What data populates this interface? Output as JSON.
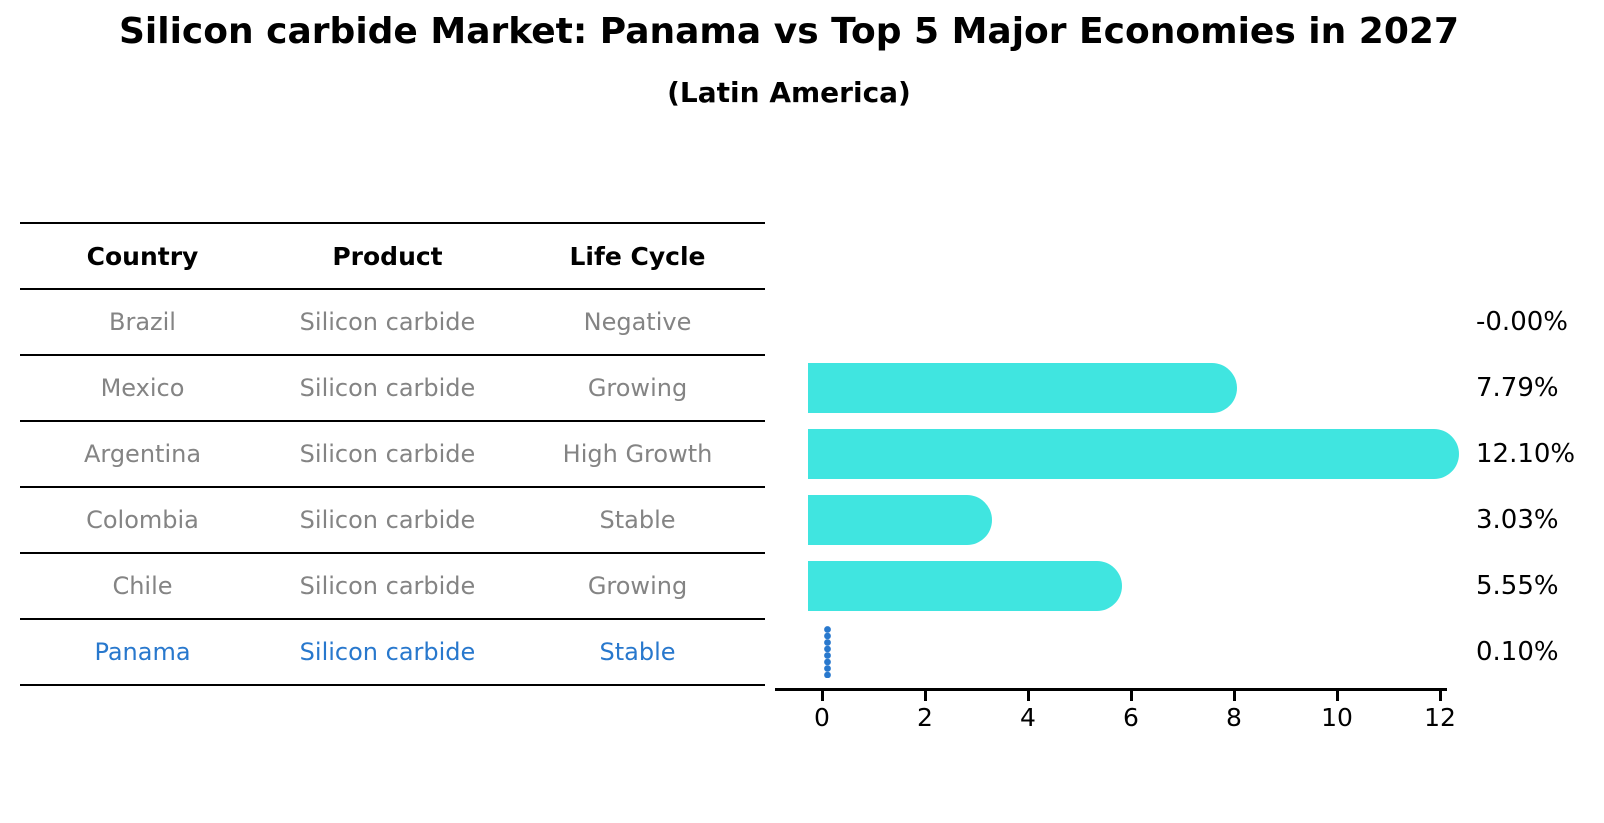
{
  "title": "Silicon carbide Market: Panama vs Top 5 Major Economies in 2027",
  "subtitle": "(Latin America)",
  "table": {
    "headers": [
      "Country",
      "Product",
      "Life Cycle"
    ]
  },
  "rows": [
    {
      "country": "Brazil",
      "product": "Silicon carbide",
      "life_cycle": "Negative",
      "value": -0.0,
      "value_label": "-0.00%",
      "highlight": false
    },
    {
      "country": "Mexico",
      "product": "Silicon carbide",
      "life_cycle": "Growing",
      "value": 7.79,
      "value_label": "7.79%",
      "highlight": false
    },
    {
      "country": "Argentina",
      "product": "Silicon carbide",
      "life_cycle": "High Growth",
      "value": 12.1,
      "value_label": "12.10%",
      "highlight": false
    },
    {
      "country": "Colombia",
      "product": "Silicon carbide",
      "life_cycle": "Stable",
      "value": 3.03,
      "value_label": "3.03%",
      "highlight": false
    },
    {
      "country": "Chile",
      "product": "Silicon carbide",
      "life_cycle": "Growing",
      "value": 5.55,
      "value_label": "5.55%",
      "highlight": false
    },
    {
      "country": "Panama",
      "product": "Silicon carbide",
      "life_cycle": "Stable",
      "value": 0.1,
      "value_label": "0.10%",
      "highlight": true
    }
  ],
  "chart_data": {
    "type": "bar",
    "orientation": "horizontal",
    "title": "Silicon carbide Market: Panama vs Top 5 Major Economies in 2027",
    "subtitle": "(Latin America)",
    "categories": [
      "Brazil",
      "Mexico",
      "Argentina",
      "Colombia",
      "Chile",
      "Panama"
    ],
    "values": [
      -0.0,
      7.79,
      12.1,
      3.03,
      5.55,
      0.1
    ],
    "value_labels": [
      "-0.00%",
      "7.79%",
      "12.10%",
      "3.03%",
      "5.55%",
      "0.10%"
    ],
    "x_ticks": [
      "0",
      "2",
      "4",
      "6",
      "8",
      "10",
      "12"
    ],
    "xlim": [
      0,
      13
    ],
    "grid": false,
    "legend": false,
    "bar_color": "#40E5E0",
    "highlight_color": "#2878CD",
    "highlight_category": "Panama",
    "highlight_marker": "vertical-dotted-line"
  },
  "colors": {
    "bar": "#40E5E0",
    "highlight": "#2878CD",
    "row_text": "#848484",
    "heading_text": "#000000",
    "line": "#000000",
    "background": "#ffffff"
  }
}
